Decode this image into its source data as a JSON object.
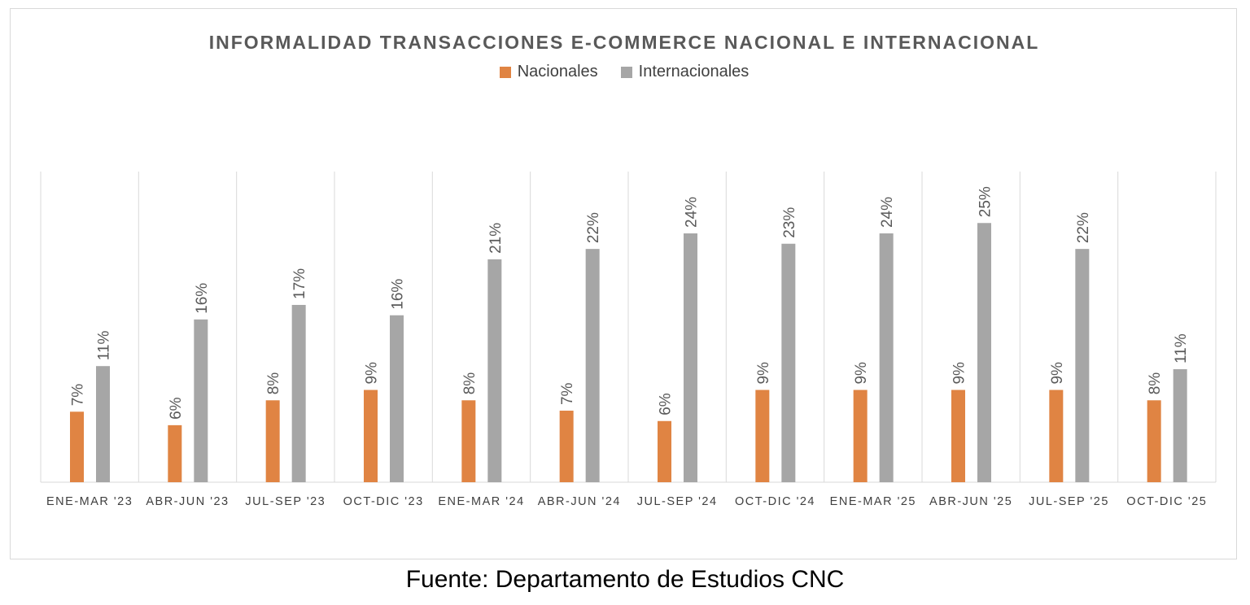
{
  "chart_data": {
    "type": "bar",
    "title": "INFORMALIDAD TRANSACCIONES E-COMMERCE NACIONAL E INTERNACIONAL",
    "categories": [
      "ENE-MAR '23",
      "ABR-JUN '23",
      "JUL-SEP '23",
      "OCT-DIC '23",
      "ENE-MAR '24",
      "ABR-JUN '24",
      "JUL-SEP '24",
      "OCT-DIC '24",
      "ENE-MAR '25",
      "ABR-JUN '25",
      "JUL-SEP '25",
      "OCT-DIC '25"
    ],
    "series": [
      {
        "name": "Nacionales",
        "color": "#E08443",
        "values": [
          6.8,
          5.5,
          7.9,
          8.9,
          7.9,
          6.9,
          5.9,
          8.9,
          8.9,
          8.9,
          8.9,
          7.9
        ],
        "labels": [
          "7%",
          "6%",
          "8%",
          "9%",
          "8%",
          "7%",
          "6%",
          "9%",
          "9%",
          "9%",
          "9%",
          "8%"
        ]
      },
      {
        "name": "Internacionales",
        "color": "#A6A6A6",
        "values": [
          11.2,
          15.7,
          17.1,
          16.1,
          21.5,
          22.5,
          24.0,
          23.0,
          24.0,
          25.0,
          22.5,
          10.9
        ],
        "labels": [
          "11%",
          "16%",
          "17%",
          "16%",
          "21%",
          "22%",
          "24%",
          "23%",
          "24%",
          "25%",
          "22%",
          "11%"
        ]
      }
    ],
    "ylim": [
      0,
      30
    ],
    "grid": "vertical category separators",
    "legend_position": "top",
    "data_labels": "rotated"
  },
  "source_note": "Fuente: Departamento de Estudios CNC"
}
